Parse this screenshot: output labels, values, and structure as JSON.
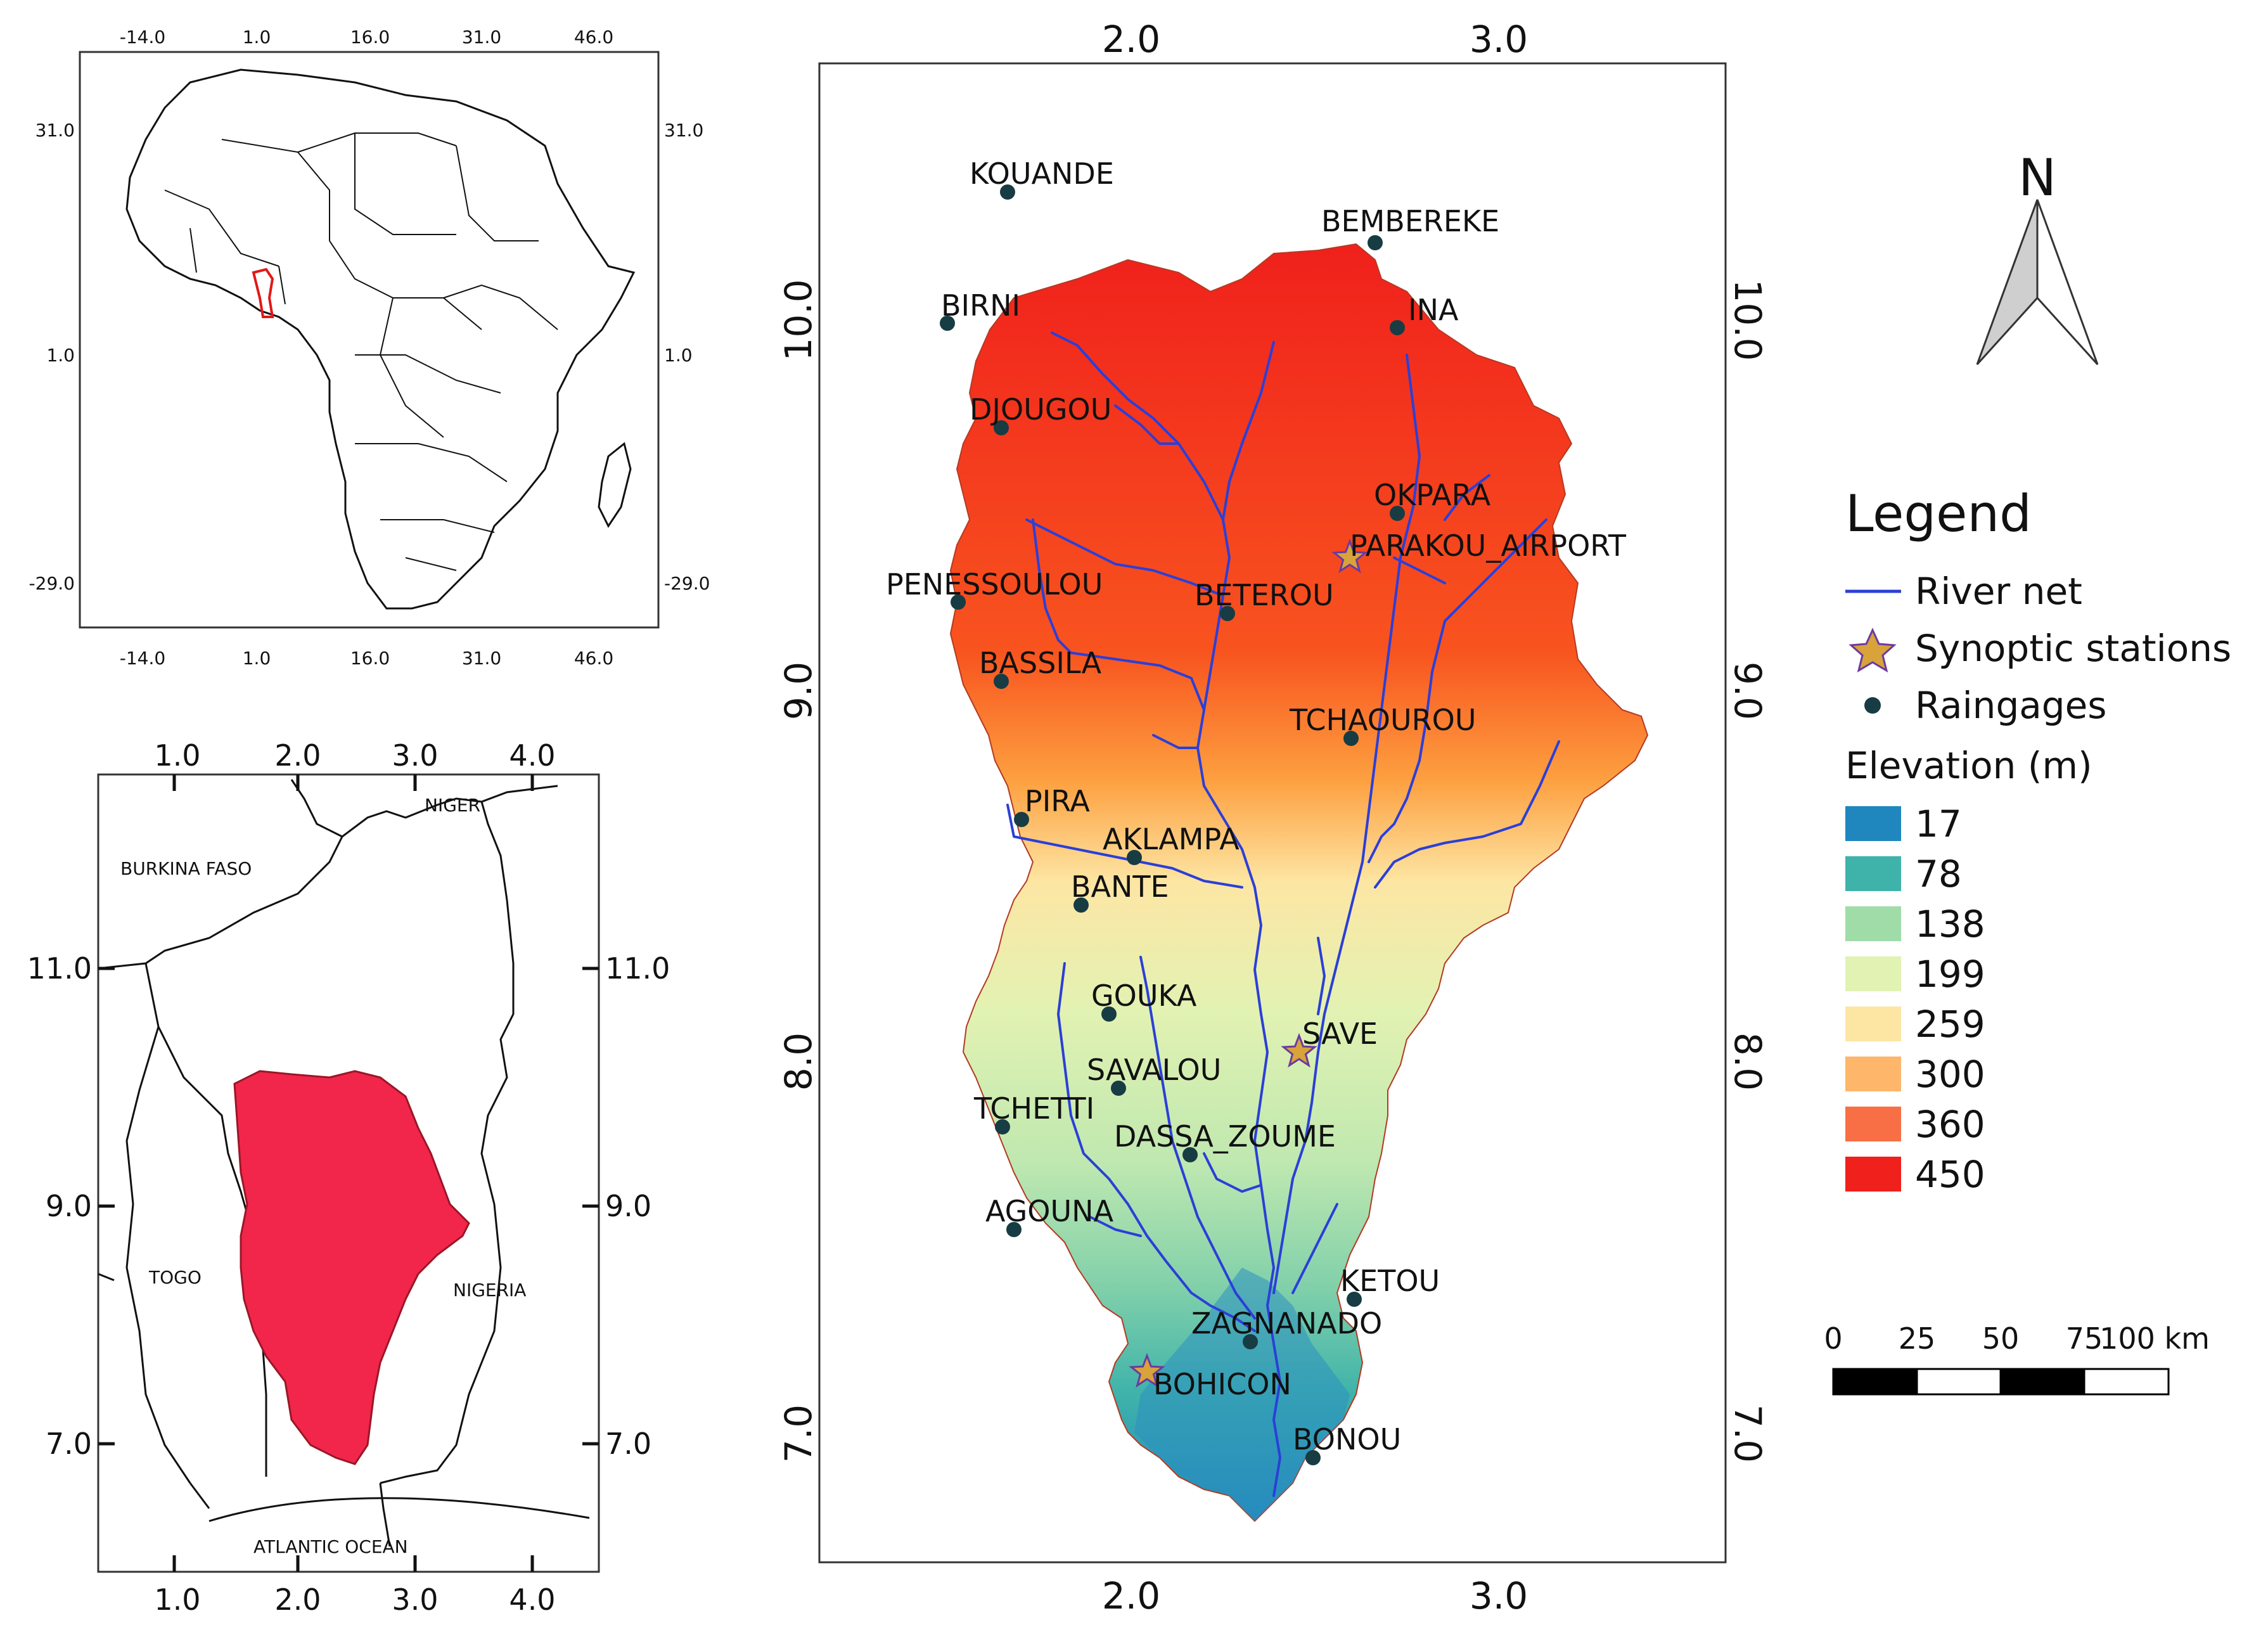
{
  "inset_africa": {
    "x_ticks": [
      "-14.0",
      "1.0",
      "16.0",
      "31.0",
      "46.0"
    ],
    "y_ticks": [
      "31.0",
      "1.0",
      "-29.0"
    ]
  },
  "inset_benin": {
    "x_ticks": [
      "1.0",
      "2.0",
      "3.0",
      "4.0"
    ],
    "y_ticks": [
      "11.0",
      "9.0",
      "7.0"
    ],
    "countries": [
      "BURKINA FASO",
      "NIGER",
      "TOGO",
      "NIGERIA",
      "ATLANTIC OCEAN"
    ]
  },
  "main_map": {
    "x_ticks": [
      "2.0",
      "3.0"
    ],
    "y_ticks": [
      "10.0",
      "9.0",
      "8.0",
      "7.0"
    ],
    "stations": [
      {
        "name": "KOUANDE",
        "type": "raingage"
      },
      {
        "name": "BEMBEREKE",
        "type": "raingage"
      },
      {
        "name": "BIRNI",
        "type": "raingage"
      },
      {
        "name": "INA",
        "type": "raingage"
      },
      {
        "name": "DJOUGOU",
        "type": "raingage"
      },
      {
        "name": "OKPARA",
        "type": "raingage"
      },
      {
        "name": "PARAKOU_AIRPORT",
        "type": "synoptic"
      },
      {
        "name": "PENESSOULOU",
        "type": "raingage"
      },
      {
        "name": "BETEROU",
        "type": "raingage"
      },
      {
        "name": "BASSILA",
        "type": "raingage"
      },
      {
        "name": "TCHAOUROU",
        "type": "raingage"
      },
      {
        "name": "PIRA",
        "type": "raingage"
      },
      {
        "name": "AKLAMPA",
        "type": "raingage"
      },
      {
        "name": "BANTE",
        "type": "raingage"
      },
      {
        "name": "GOUKA",
        "type": "raingage"
      },
      {
        "name": "SAVE",
        "type": "synoptic"
      },
      {
        "name": "SAVALOU",
        "type": "raingage"
      },
      {
        "name": "TCHETTI",
        "type": "raingage"
      },
      {
        "name": "DASSA_ZOUME",
        "type": "raingage"
      },
      {
        "name": "AGOUNA",
        "type": "raingage"
      },
      {
        "name": "KETOU",
        "type": "raingage"
      },
      {
        "name": "ZAGNANADO",
        "type": "raingage"
      },
      {
        "name": "BOHICON",
        "type": "synoptic"
      },
      {
        "name": "BONOU",
        "type": "raingage"
      }
    ]
  },
  "north_arrow": {
    "label": "N"
  },
  "legend": {
    "title": "Legend",
    "river_label": "River net",
    "synoptic_label": "Synoptic stations",
    "raingage_label": "Raingages",
    "elevation_title": "Elevation (m)",
    "elevation_classes": [
      {
        "value": "17",
        "color": "#1f86be"
      },
      {
        "value": "78",
        "color": "#3fb3aa"
      },
      {
        "value": "138",
        "color": "#9fdca8"
      },
      {
        "value": "199",
        "color": "#e2f2b2"
      },
      {
        "value": "259",
        "color": "#fde6a4"
      },
      {
        "value": "300",
        "color": "#fdb66a"
      },
      {
        "value": "360",
        "color": "#f86f46"
      },
      {
        "value": "450",
        "color": "#f0201c"
      }
    ]
  },
  "scale_bar": {
    "ticks": [
      "0",
      "25",
      "50",
      "75",
      "100 km"
    ]
  },
  "colors": {
    "river": "#2b3fd8",
    "basin_inset": "#f2264a",
    "raingage": "#173c43",
    "synoptic_fill": "#d8a33a",
    "synoptic_stroke": "#6a3aa0"
  }
}
